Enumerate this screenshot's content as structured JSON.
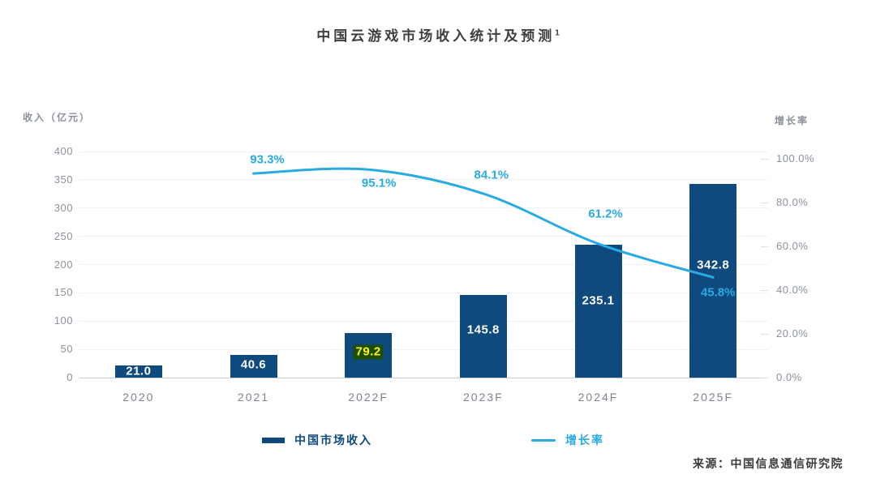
{
  "title": {
    "text": "中国云游戏市场收入统计及预测",
    "superscript": "1"
  },
  "source": "来源：中国信息通信研究院",
  "colors": {
    "bar": "#0e4a7d",
    "line": "#29abe2",
    "bar_label": "#ffffff",
    "highlight_text": "#fbf60e",
    "highlight_bg": "#1e4d05",
    "axis_text": "#8b929b",
    "x_label_text": "#7e858e",
    "grid": "#eff1f3",
    "baseline": "#c9cdd1",
    "legend_bar_text": "#0e4a7d",
    "legend_line_text": "#29abe2"
  },
  "left_axis": {
    "title": "收入（亿元）",
    "ticks": [
      "400",
      "350",
      "300",
      "250",
      "200",
      "150",
      "100",
      "50",
      "0"
    ],
    "max": 400,
    "min": 0
  },
  "right_axis": {
    "title": "增长率",
    "ticks": [
      "100.0%",
      "80.0%",
      "60.0%",
      "40.0%",
      "20.0%",
      "0.0%"
    ],
    "max": 100,
    "min": 0
  },
  "legend": {
    "bar_label": "中国市场收入",
    "line_label": "增长率"
  },
  "chart_data": {
    "type": "bar+line",
    "title": "中国云游戏市场收入统计及预测",
    "categories": [
      "2020",
      "2021",
      "2022F",
      "2023F",
      "2024F",
      "2025F"
    ],
    "grid": true,
    "legend_position": "bottom",
    "series": [
      {
        "name": "中国市场收入",
        "type": "bar",
        "axis": "left",
        "ylabel": "收入（亿元）",
        "ylim": [
          0,
          400
        ],
        "values": [
          21.0,
          40.6,
          79.2,
          145.8,
          235.1,
          342.8
        ],
        "labels": [
          "21.0",
          "40.6",
          "79.2",
          "145.8",
          "235.1",
          "342.8"
        ],
        "highlighted_label_index": 2
      },
      {
        "name": "增长率",
        "type": "line",
        "axis": "right",
        "ylabel": "增长率",
        "ylim": [
          0,
          100
        ],
        "categories": [
          "2021",
          "2022F",
          "2023F",
          "2024F",
          "2025F"
        ],
        "values": [
          93.3,
          95.1,
          84.1,
          61.2,
          45.8
        ],
        "labels": [
          "93.3%",
          "95.1%",
          "84.1%",
          "61.2%",
          "45.8%"
        ]
      }
    ]
  }
}
